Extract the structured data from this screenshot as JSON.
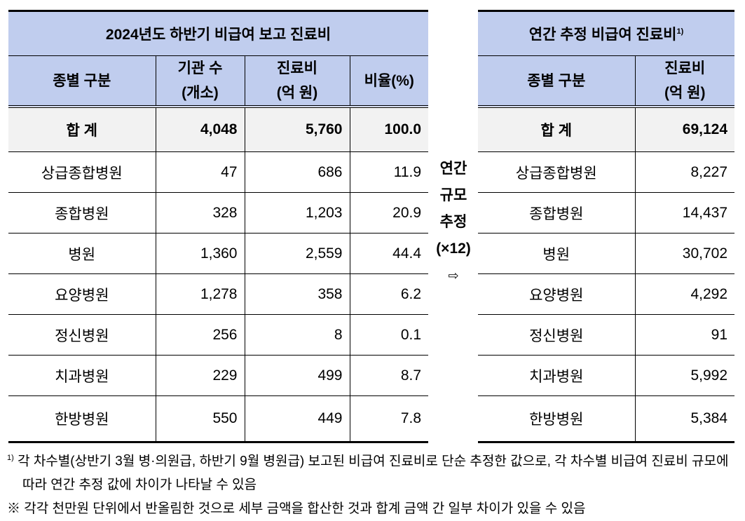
{
  "left_table": {
    "title": "2024년도 하반기 비급여 보고 진료비",
    "headers": [
      {
        "l1": "종별 구분",
        "l2": ""
      },
      {
        "l1": "기관 수",
        "l2": "(개소)"
      },
      {
        "l1": "진료비",
        "l2": "(억 원)"
      },
      {
        "l1": "비율(%)",
        "l2": ""
      }
    ],
    "total": [
      "합 계",
      "4,048",
      "5,760",
      "100.0"
    ],
    "rows": [
      [
        "상급종합병원",
        "47",
        "686",
        "11.9"
      ],
      [
        "종합병원",
        "328",
        "1,203",
        "20.9"
      ],
      [
        "병원",
        "1,360",
        "2,559",
        "44.4"
      ],
      [
        "요양병원",
        "1,278",
        "358",
        "6.2"
      ],
      [
        "정신병원",
        "256",
        "8",
        "0.1"
      ],
      [
        "치과병원",
        "229",
        "499",
        "8.7"
      ],
      [
        "한방병원",
        "550",
        "449",
        "7.8"
      ]
    ]
  },
  "middle": {
    "l1": "연간",
    "l2": "규모",
    "l3": "추정",
    "l4": "(×12)",
    "arrow": "⇨"
  },
  "right_table": {
    "title": "연간 추정 비급여 진료비",
    "title_sup": "1)",
    "headers": [
      {
        "l1": "종별 구분",
        "l2": ""
      },
      {
        "l1": "진료비",
        "l2": "(억 원)"
      }
    ],
    "total": [
      "합 계",
      "69,124"
    ],
    "rows": [
      [
        "상급종합병원",
        "8,227"
      ],
      [
        "종합병원",
        "14,437"
      ],
      [
        "병원",
        "30,702"
      ],
      [
        "요양병원",
        "4,292"
      ],
      [
        "정신병원",
        "91"
      ],
      [
        "치과병원",
        "5,992"
      ],
      [
        "한방병원",
        "5,384"
      ]
    ]
  },
  "notes": {
    "n1_sup": "1)",
    "n1": "각 차수별(상반기 3월 병·의원급, 하반기 9월 병원급) 보고된 비급여 진료비로 단순 추정한 값으로, 각 차수별 비급여 진료비 규모에 따라 연간 추정 값에 차이가 나타날 수 있음",
    "n2": "※ 각각 천만원 단위에서 반올림한 것으로 세부 금액을 합산한 것과 합계 금액 간 일부 차이가 있을 수 있음"
  }
}
